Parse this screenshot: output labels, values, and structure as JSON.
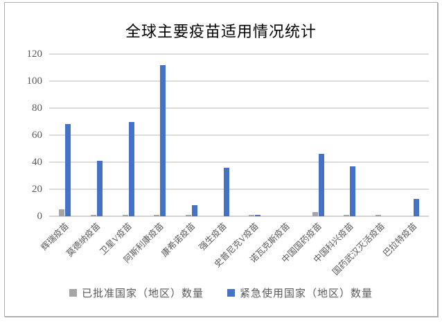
{
  "title": "全球主要疫苗适用情况统计",
  "legend": {
    "items": [
      {
        "label": "已批准国家（地区）数量",
        "color": "#A5A5A5"
      },
      {
        "label": "紧急使用国家（地区）数量",
        "color": "#4472C4"
      }
    ]
  },
  "colors": {
    "approved_bar": "#A5A5A5",
    "emergency_bar": "#4472C4",
    "gridline": "#DCDCDC",
    "axis_text": "#595959",
    "title_text": "#000000",
    "frame_border": "#ABABAB"
  },
  "chart_data": {
    "type": "bar",
    "title": "全球主要疫苗适用情况统计",
    "categories": [
      "辉瑞疫苗",
      "莫德纳疫苗",
      "卫星V疫苗",
      "阿斯利康疫苗",
      "康希诺疫苗",
      "强生疫苗",
      "史普尼克V疫苗",
      "诺瓦克斯疫苗",
      "中国国药疫苗",
      "中国科兴疫苗",
      "国药武汉灭活疫苗",
      "巴拉特疫苗"
    ],
    "series": [
      {
        "name": "已批准国家（地区）数量",
        "color": "#A5A5A5",
        "values": [
          5,
          1,
          1,
          1,
          1,
          0,
          1,
          0,
          3,
          1,
          1,
          0
        ]
      },
      {
        "name": "紧急使用国家（地区）数量",
        "color": "#4472C4",
        "values": [
          68,
          41,
          70,
          112,
          8,
          36,
          1,
          0,
          46,
          37,
          0,
          13
        ]
      }
    ],
    "xlabel": "",
    "ylabel": "",
    "ylim": [
      0,
      120
    ],
    "yticks": [
      0,
      20,
      40,
      60,
      80,
      100,
      120
    ],
    "grid": true,
    "legend_position": "bottom",
    "xlabel_rotation_deg": -45
  }
}
